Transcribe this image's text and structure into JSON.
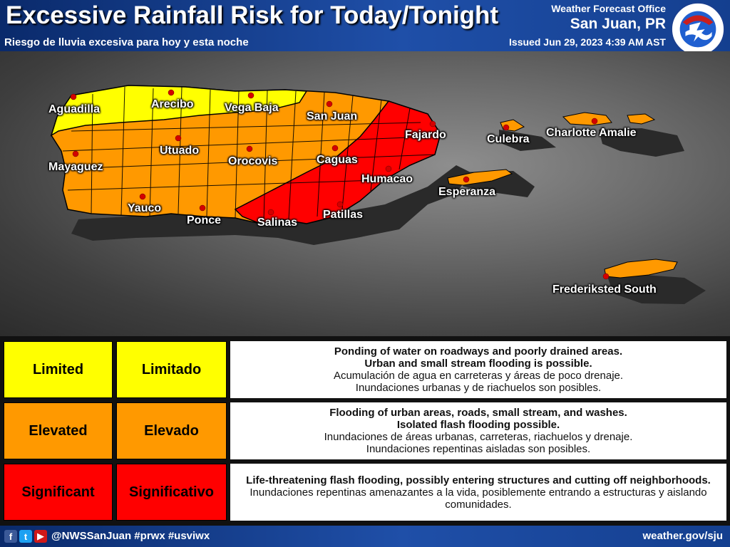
{
  "header": {
    "title": "Excessive Rainfall Risk for Today/Tonight",
    "subtitle": "Riesgo de lluvia excesiva para hoy y esta noche",
    "office": "Weather Forecast Office",
    "office_city": "San Juan, PR",
    "issued": "Issued Jun 29, 2023 4:39 AM AST",
    "logo_icon": "nws-logo-icon"
  },
  "colors": {
    "limited": "#ffff00",
    "elevated": "#ff9900",
    "significant": "#ff0000"
  },
  "cities": [
    "Aguadilla",
    "Arecibo",
    "Vega Baja",
    "San Juan",
    "Fajardo",
    "Culebra",
    "Charlotte Amalie",
    "Mayaguez",
    "Utuado",
    "Orocovis",
    "Caguas",
    "Humacao",
    "Esperanza",
    "Yauco",
    "Ponce",
    "Salinas",
    "Patillas",
    "Frederiksted South"
  ],
  "legend": [
    {
      "level_en": "Limited",
      "level_es": "Limitado",
      "color": "#ffff00",
      "text_color": "#000000",
      "desc_en_1": "Ponding of water on roadways and poorly drained areas.",
      "desc_en_2": "Urban and small stream flooding is possible.",
      "desc_es_1": "Acumulación de agua en carreteras y áreas de poco drenaje.",
      "desc_es_2": "Inundaciones urbanas y de riachuelos son posibles."
    },
    {
      "level_en": "Elevated",
      "level_es": "Elevado",
      "color": "#ff9900",
      "text_color": "#000000",
      "desc_en_1": "Flooding of urban areas, roads, small stream, and washes.",
      "desc_en_2": "Isolated flash flooding possible.",
      "desc_es_1": "Inundaciones de áreas urbanas, carreteras, riachuelos y drenaje.",
      "desc_es_2": "Inundaciones repentinas aisladas son posibles."
    },
    {
      "level_en": "Significant",
      "level_es": "Significativo",
      "color": "#ff0000",
      "text_color": "#000000",
      "desc_en_1": "Life-threatening flash flooding, possibly entering structures and cutting off neighborhoods.",
      "desc_es_1": "Inundaciones repentinas amenazantes a la vida, posiblemente entrando a estructuras y aislando comunidades."
    }
  ],
  "footer": {
    "social_icons": [
      "facebook-icon",
      "twitter-icon",
      "youtube-icon"
    ],
    "handle": "@NWSSanJuan #prwx #usviwx",
    "website": "weather.gov/sju"
  }
}
